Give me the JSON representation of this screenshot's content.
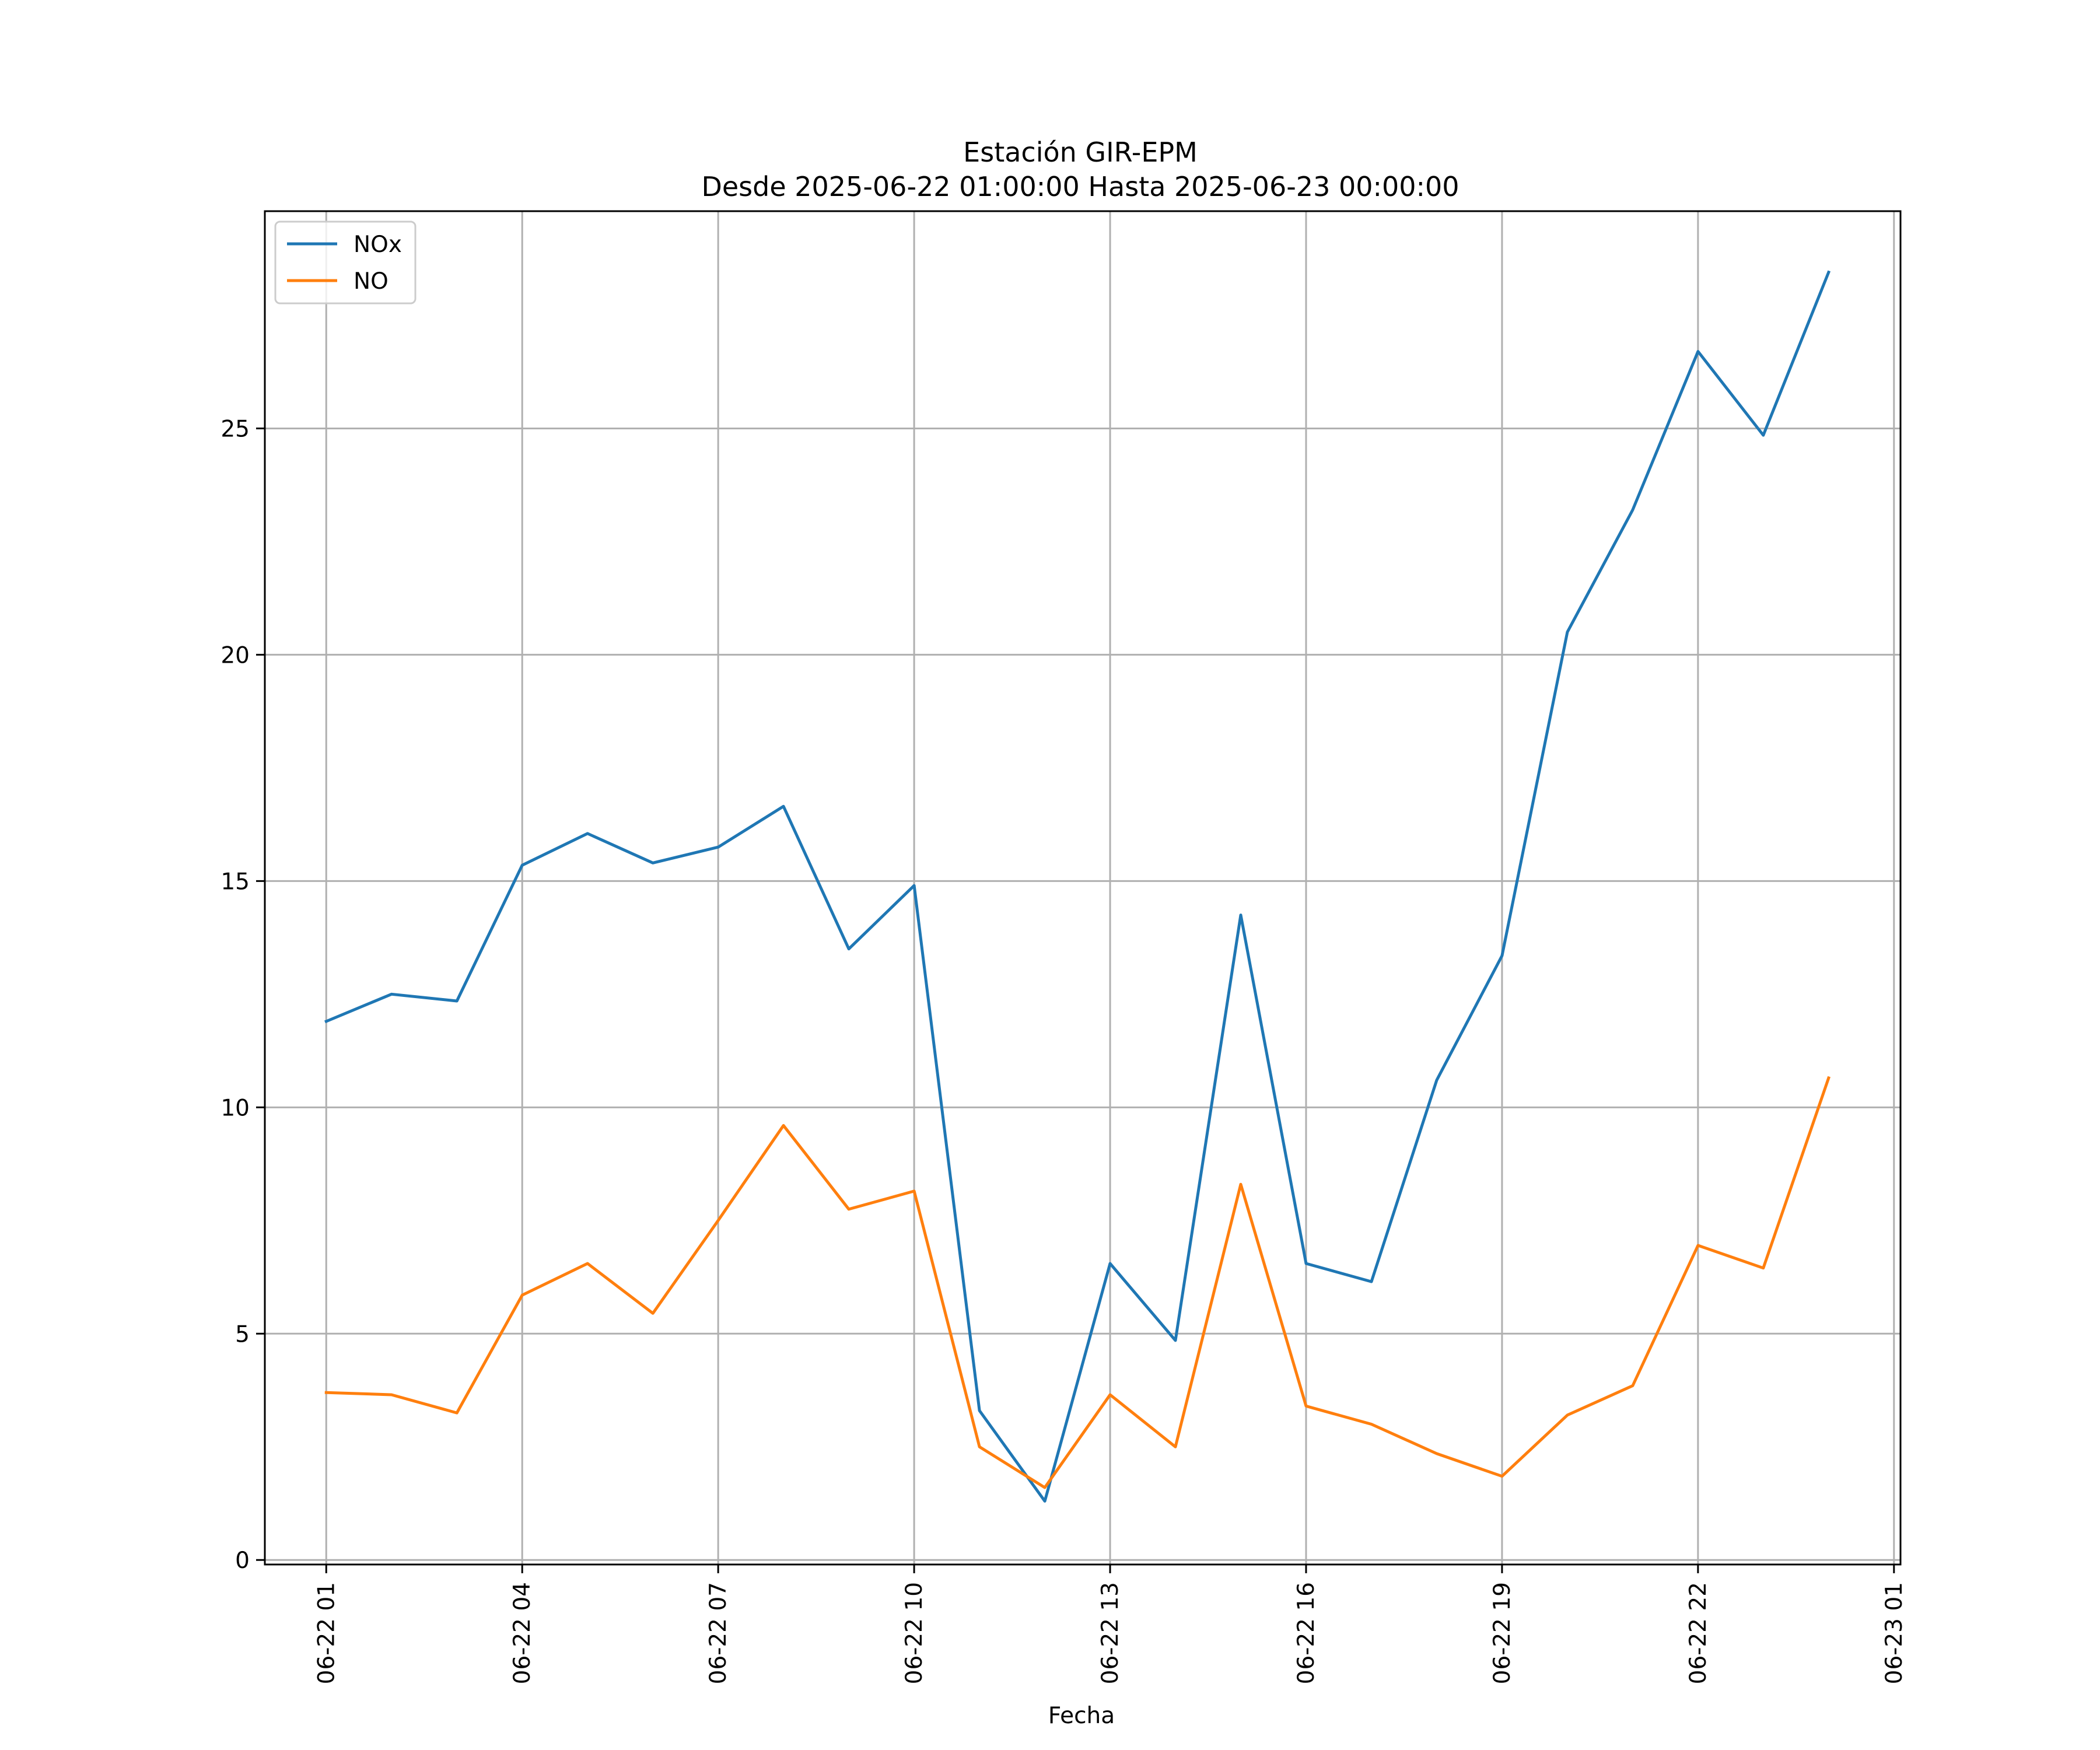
{
  "chart_data": {
    "type": "line",
    "title": "Estación GIR-EPM",
    "subtitle": "Desde 2025-06-22 01:00:00 Hasta 2025-06-23 00:00:00",
    "xlabel": "Fecha",
    "ylabel": "",
    "x": [
      "2025-06-22 01:00",
      "2025-06-22 02:00",
      "2025-06-22 03:00",
      "2025-06-22 04:00",
      "2025-06-22 05:00",
      "2025-06-22 06:00",
      "2025-06-22 07:00",
      "2025-06-22 08:00",
      "2025-06-22 09:00",
      "2025-06-22 10:00",
      "2025-06-22 11:00",
      "2025-06-22 12:00",
      "2025-06-22 13:00",
      "2025-06-22 14:00",
      "2025-06-22 15:00",
      "2025-06-22 16:00",
      "2025-06-22 17:00",
      "2025-06-22 18:00",
      "2025-06-22 19:00",
      "2025-06-22 20:00",
      "2025-06-22 21:00",
      "2025-06-22 22:00",
      "2025-06-22 23:00",
      "2025-06-23 00:00"
    ],
    "series": [
      {
        "name": "NOx",
        "color": "#1f77b4",
        "values": [
          11.9,
          12.5,
          12.35,
          15.35,
          16.05,
          15.4,
          15.75,
          16.65,
          13.5,
          14.9,
          3.3,
          1.3,
          6.55,
          4.85,
          14.25,
          6.55,
          6.15,
          10.6,
          13.35,
          20.5,
          23.2,
          26.7,
          24.85,
          28.45
        ]
      },
      {
        "name": "NO",
        "color": "#ff7f0e",
        "values": [
          3.7,
          3.65,
          3.25,
          5.85,
          6.55,
          5.45,
          7.5,
          9.6,
          7.75,
          8.15,
          2.5,
          1.6,
          3.65,
          2.5,
          8.3,
          3.4,
          3.0,
          2.35,
          1.85,
          3.2,
          3.85,
          6.95,
          6.45,
          10.65
        ]
      }
    ],
    "xticks": [
      "06-22 01",
      "06-22 04",
      "06-22 07",
      "06-22 10",
      "06-22 13",
      "06-22 16",
      "06-22 19",
      "06-22 22",
      "06-23 01"
    ],
    "xtick_hours": [
      1,
      4,
      7,
      10,
      13,
      16,
      19,
      22,
      25
    ],
    "yticks": [
      0,
      5,
      10,
      15,
      20,
      25
    ],
    "ylim": [
      -0.1,
      29.8
    ],
    "xlim_hours": [
      0.06,
      25.1
    ],
    "grid": true,
    "legend_position": "top-left"
  }
}
